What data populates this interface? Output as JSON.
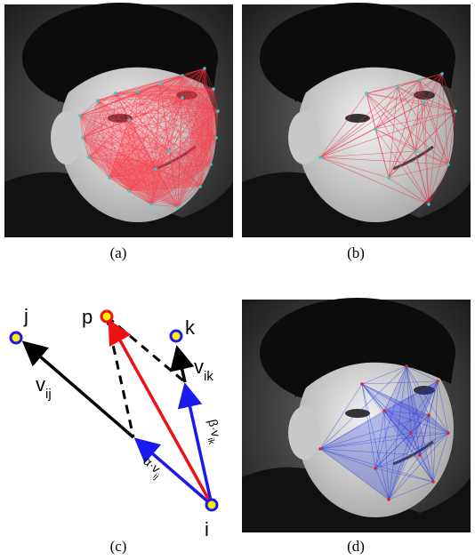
{
  "panels": [
    {
      "caption": "(a)"
    },
    {
      "caption": "(b)"
    },
    {
      "caption": "(c)"
    },
    {
      "caption": "(d)"
    }
  ],
  "diagram": {
    "points": [
      "j",
      "p",
      "k",
      "i"
    ],
    "vectors": [
      {
        "main": "v",
        "sub": "ij"
      },
      {
        "main": "v",
        "sub": "ik"
      },
      {
        "main": "α·v",
        "sub": "ij"
      },
      {
        "main": "β·v",
        "sub": "ik"
      }
    ]
  }
}
